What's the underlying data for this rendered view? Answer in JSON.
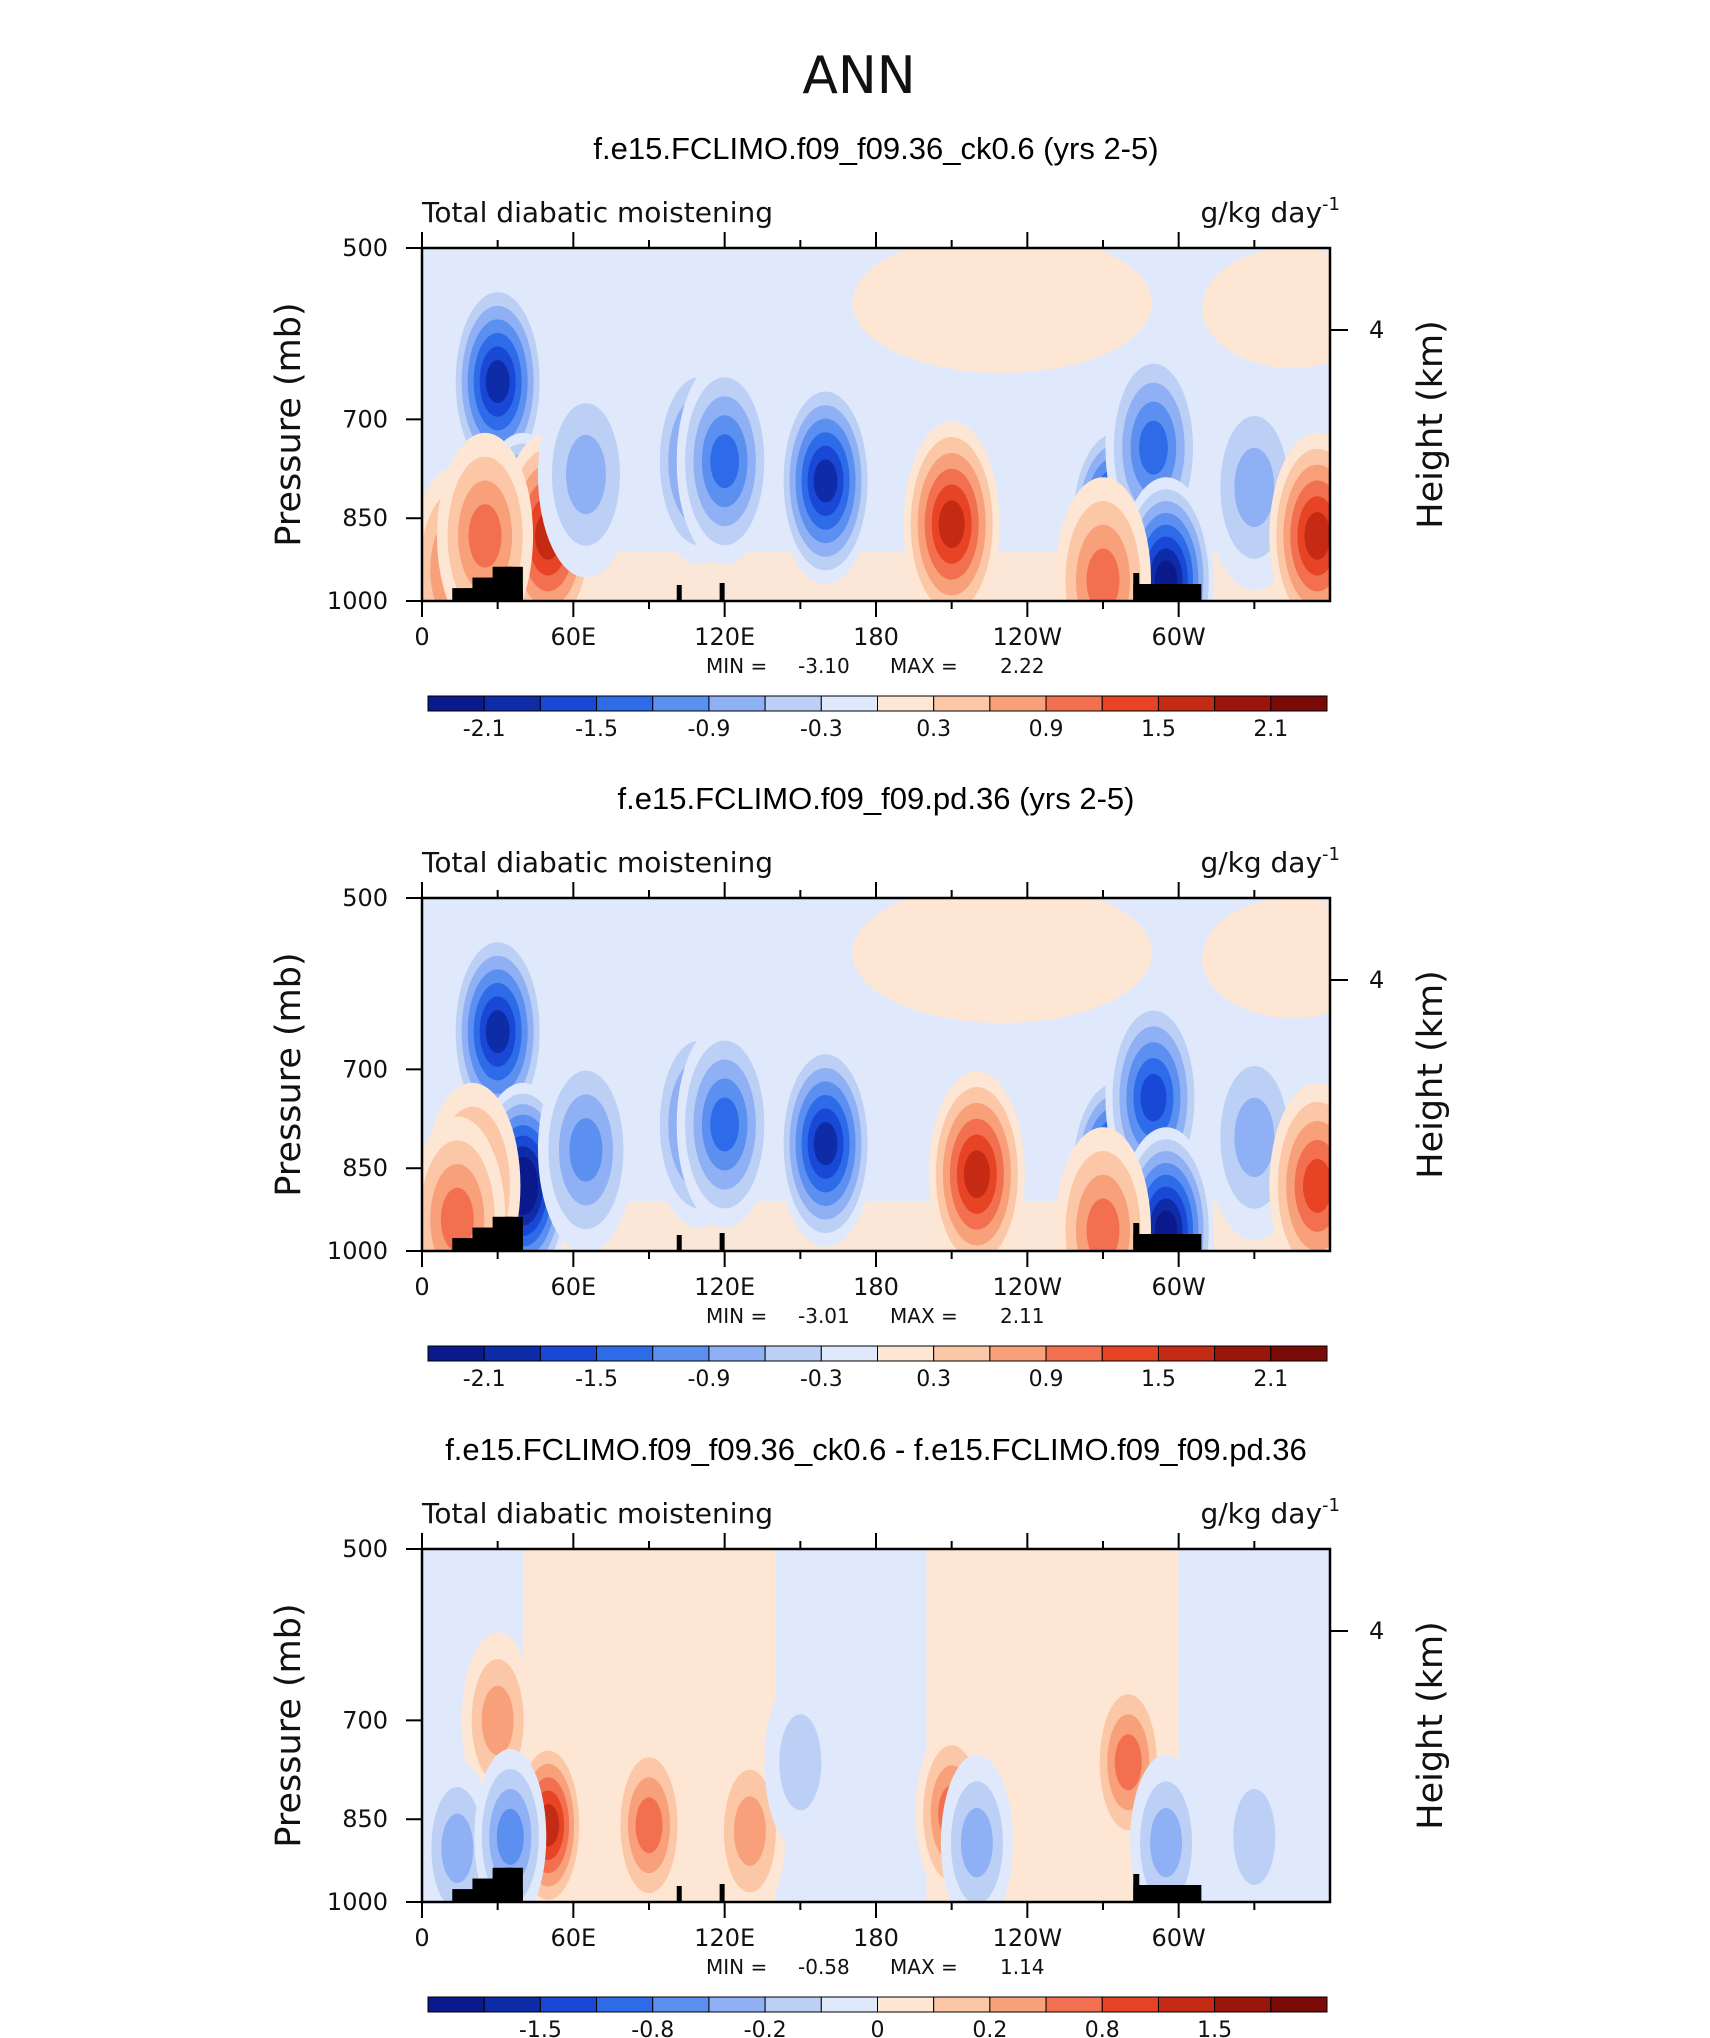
{
  "main_title": "ANN",
  "chart_data": [
    {
      "type": "heatmap",
      "title": "f.e15.FCLIMO.f09_f09.36_ck0.6 (yrs 2-5)",
      "variable_label": "Total diabatic moistening",
      "units_label": "g/kg day",
      "units_exponent": "-1",
      "ylabel": "Pressure (mb)",
      "ylabel_right": "Height (km)",
      "y_ticks": [
        "500",
        "700",
        "850",
        "1000"
      ],
      "y_right_ticks": [
        "4"
      ],
      "x_ticks": [
        "0",
        "60E",
        "120E",
        "180",
        "120W",
        "60W"
      ],
      "stats": {
        "min_label": "MIN =",
        "min_value": "-3.10",
        "max_label": "MAX =",
        "max_value": "2.22"
      },
      "colorbar_labels": [
        "-2.1",
        "-1.5",
        "-0.9",
        "-0.3",
        "0.3",
        "0.9",
        "1.5",
        "2.1"
      ],
      "features": [
        {
          "lon": 30,
          "p": 650,
          "value": -2.0
        },
        {
          "lon": 40,
          "p": 880,
          "value": -2.6
        },
        {
          "lon": 50,
          "p": 880,
          "value": 1.6
        },
        {
          "lon": 14,
          "p": 940,
          "value": 1.2
        },
        {
          "lon": 25,
          "p": 880,
          "value": 1.0
        },
        {
          "lon": 65,
          "p": 780,
          "value": -0.7
        },
        {
          "lon": 110,
          "p": 760,
          "value": -1.5
        },
        {
          "lon": 120,
          "p": 760,
          "value": -1.3
        },
        {
          "lon": 160,
          "p": 790,
          "value": -1.9
        },
        {
          "lon": 210,
          "p": 860,
          "value": 1.7
        },
        {
          "lon": 275,
          "p": 860,
          "value": -2.2
        },
        {
          "lon": 290,
          "p": 740,
          "value": -1.5
        },
        {
          "lon": 295,
          "p": 960,
          "value": -2.3
        },
        {
          "lon": 330,
          "p": 800,
          "value": -0.9
        },
        {
          "lon": 355,
          "p": 880,
          "value": 1.6
        },
        {
          "lon": 270,
          "p": 960,
          "value": 1.0
        }
      ]
    },
    {
      "type": "heatmap",
      "title": "f.e15.FCLIMO.f09_f09.pd.36 (yrs 2-5)",
      "variable_label": "Total diabatic moistening",
      "units_label": "g/kg day",
      "units_exponent": "-1",
      "ylabel": "Pressure (mb)",
      "ylabel_right": "Height (km)",
      "y_ticks": [
        "500",
        "700",
        "850",
        "1000"
      ],
      "y_right_ticks": [
        "4"
      ],
      "x_ticks": [
        "0",
        "60E",
        "120E",
        "180",
        "120W",
        "60W"
      ],
      "stats": {
        "min_label": "MIN =",
        "min_value": "-3.01",
        "max_label": "MAX =",
        "max_value": "2.11"
      },
      "colorbar_labels": [
        "-2.1",
        "-1.5",
        "-0.9",
        "-0.3",
        "0.3",
        "0.9",
        "1.5",
        "2.1"
      ],
      "features": [
        {
          "lon": 30,
          "p": 650,
          "value": -2.0
        },
        {
          "lon": 40,
          "p": 880,
          "value": -2.5
        },
        {
          "lon": 20,
          "p": 880,
          "value": 1.2
        },
        {
          "lon": 14,
          "p": 940,
          "value": 1.0
        },
        {
          "lon": 65,
          "p": 820,
          "value": -1.0
        },
        {
          "lon": 110,
          "p": 780,
          "value": -1.4
        },
        {
          "lon": 120,
          "p": 780,
          "value": -1.3
        },
        {
          "lon": 160,
          "p": 810,
          "value": -2.0
        },
        {
          "lon": 220,
          "p": 860,
          "value": 1.7
        },
        {
          "lon": 275,
          "p": 860,
          "value": -2.2
        },
        {
          "lon": 290,
          "p": 740,
          "value": -1.6
        },
        {
          "lon": 295,
          "p": 960,
          "value": -2.3
        },
        {
          "lon": 330,
          "p": 800,
          "value": -0.8
        },
        {
          "lon": 355,
          "p": 880,
          "value": 1.5
        },
        {
          "lon": 270,
          "p": 960,
          "value": 1.0
        }
      ]
    },
    {
      "type": "heatmap",
      "title": "f.e15.FCLIMO.f09_f09.36_ck0.6 - f.e15.FCLIMO.f09_f09.pd.36",
      "variable_label": "Total diabatic moistening",
      "units_label": "g/kg day",
      "units_exponent": "-1",
      "ylabel": "Pressure (mb)",
      "ylabel_right": "Height (km)",
      "y_ticks": [
        "500",
        "700",
        "850",
        "1000"
      ],
      "y_right_ticks": [
        "4"
      ],
      "x_ticks": [
        "0",
        "60E",
        "120E",
        "180",
        "120W",
        "60W"
      ],
      "stats": {
        "min_label": "MIN =",
        "min_value": "-0.58",
        "max_label": "MAX =",
        "max_value": "1.14"
      },
      "colorbar_labels": [
        "-1.5",
        "-0.8",
        "-0.2",
        "0",
        "0.2",
        "0.8",
        "1.5"
      ],
      "features": [
        {
          "lon": 50,
          "p": 860,
          "value": 0.9
        },
        {
          "lon": 30,
          "p": 700,
          "value": 0.4
        },
        {
          "lon": 14,
          "p": 900,
          "value": -0.4
        },
        {
          "lon": 35,
          "p": 880,
          "value": -0.5
        },
        {
          "lon": 90,
          "p": 860,
          "value": 0.5
        },
        {
          "lon": 130,
          "p": 870,
          "value": 0.4
        },
        {
          "lon": 150,
          "p": 760,
          "value": -0.3
        },
        {
          "lon": 210,
          "p": 840,
          "value": 0.6
        },
        {
          "lon": 220,
          "p": 890,
          "value": -0.4
        },
        {
          "lon": 280,
          "p": 760,
          "value": 0.5
        },
        {
          "lon": 295,
          "p": 890,
          "value": -0.4
        },
        {
          "lon": 330,
          "p": 880,
          "value": -0.3
        }
      ]
    }
  ],
  "colors": {
    "scale": [
      "#0a1a8c",
      "#0f2ca8",
      "#1a48d6",
      "#2e6be8",
      "#5b8ff0",
      "#8fb0f4",
      "#bcd0f6",
      "#dfe9fb",
      "#fde7d4",
      "#fcc7a6",
      "#f8a07a",
      "#f27050",
      "#e64424",
      "#c52a14",
      "#9a150c",
      "#7a0a08"
    ],
    "topography": "#000000",
    "frame": "#000000"
  }
}
